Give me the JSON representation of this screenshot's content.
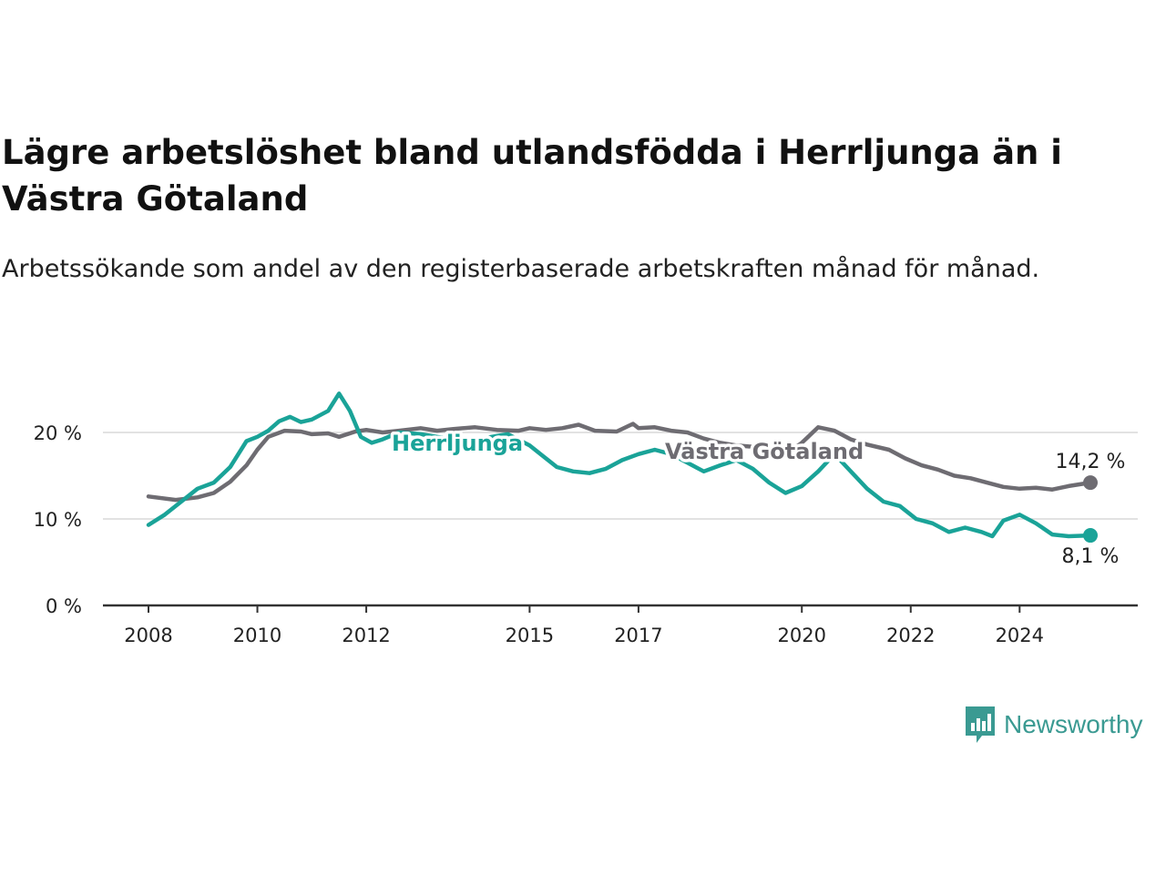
{
  "title": "Lägre arbetslöshet bland utlandsfödda i Herrljunga än i Västra Götaland",
  "subtitle": "Arbetssökande som andel av den registerbaserade arbetskraften månad för månad.",
  "brand": {
    "name": "Newsworthy",
    "icon": "newsworthy-logo-icon",
    "color": "#3a9a92"
  },
  "chart_data": {
    "type": "line",
    "title": "Lägre arbetslöshet bland utlandsfödda i Herrljunga än i Västra Götaland",
    "subtitle": "Arbetssökande som andel av den registerbaserade arbetskraften månad för månad.",
    "xlim": [
      2008.0,
      2025.75
    ],
    "ylim": [
      0,
      25
    ],
    "x_ticks": [
      {
        "value": 2008.0,
        "label": "2008"
      },
      {
        "value": 2010.0,
        "label": "2010"
      },
      {
        "value": 2012.0,
        "label": "2012"
      },
      {
        "value": 2015.0,
        "label": "2015"
      },
      {
        "value": 2017.0,
        "label": "2017"
      },
      {
        "value": 2020.0,
        "label": "2020"
      },
      {
        "value": 2022.0,
        "label": "2022"
      },
      {
        "value": 2024.0,
        "label": "2024"
      }
    ],
    "y_ticks": [
      {
        "value": 0,
        "label": "0 %"
      },
      {
        "value": 10,
        "label": "10 %"
      },
      {
        "value": 20,
        "label": "20 %"
      }
    ],
    "grid": "horizontal",
    "series": [
      {
        "name": "Västra Götaland",
        "color": "#6e6c72",
        "end_label": "14,2 %",
        "points": [
          [
            2008.0,
            12.6
          ],
          [
            2008.5,
            12.2
          ],
          [
            2008.9,
            12.5
          ],
          [
            2009.2,
            13.0
          ],
          [
            2009.5,
            14.3
          ],
          [
            2009.8,
            16.2
          ],
          [
            2010.0,
            18.0
          ],
          [
            2010.2,
            19.5
          ],
          [
            2010.5,
            20.2
          ],
          [
            2010.8,
            20.1
          ],
          [
            2011.0,
            19.8
          ],
          [
            2011.3,
            19.9
          ],
          [
            2011.5,
            19.5
          ],
          [
            2011.8,
            20.1
          ],
          [
            2012.0,
            20.3
          ],
          [
            2012.3,
            20.0
          ],
          [
            2012.6,
            20.2
          ],
          [
            2013.0,
            20.5
          ],
          [
            2013.3,
            20.2
          ],
          [
            2013.6,
            20.4
          ],
          [
            2014.0,
            20.6
          ],
          [
            2014.4,
            20.3
          ],
          [
            2014.8,
            20.2
          ],
          [
            2015.0,
            20.5
          ],
          [
            2015.3,
            20.3
          ],
          [
            2015.6,
            20.5
          ],
          [
            2015.9,
            20.9
          ],
          [
            2016.2,
            20.2
          ],
          [
            2016.6,
            20.1
          ],
          [
            2016.9,
            21.0
          ],
          [
            2017.0,
            20.5
          ],
          [
            2017.3,
            20.6
          ],
          [
            2017.6,
            20.2
          ],
          [
            2017.9,
            20.0
          ],
          [
            2018.2,
            19.3
          ],
          [
            2018.5,
            18.8
          ],
          [
            2018.8,
            18.5
          ],
          [
            2019.2,
            18.3
          ],
          [
            2019.5,
            18.0
          ],
          [
            2019.8,
            17.9
          ],
          [
            2020.0,
            18.8
          ],
          [
            2020.3,
            20.6
          ],
          [
            2020.6,
            20.2
          ],
          [
            2020.9,
            19.2
          ],
          [
            2021.2,
            18.6
          ],
          [
            2021.6,
            18.0
          ],
          [
            2021.9,
            17.0
          ],
          [
            2022.2,
            16.2
          ],
          [
            2022.5,
            15.7
          ],
          [
            2022.8,
            15.0
          ],
          [
            2023.1,
            14.7
          ],
          [
            2023.4,
            14.2
          ],
          [
            2023.7,
            13.7
          ],
          [
            2024.0,
            13.5
          ],
          [
            2024.3,
            13.6
          ],
          [
            2024.6,
            13.4
          ],
          [
            2024.9,
            13.8
          ],
          [
            2025.3,
            14.2
          ]
        ]
      },
      {
        "name": "Herrljunga",
        "color": "#1aa398",
        "end_label": "8,1 %",
        "points": [
          [
            2008.0,
            9.3
          ],
          [
            2008.3,
            10.5
          ],
          [
            2008.6,
            12.0
          ],
          [
            2008.9,
            13.5
          ],
          [
            2009.2,
            14.2
          ],
          [
            2009.5,
            16.0
          ],
          [
            2009.8,
            19.0
          ],
          [
            2010.0,
            19.5
          ],
          [
            2010.2,
            20.2
          ],
          [
            2010.4,
            21.3
          ],
          [
            2010.6,
            21.8
          ],
          [
            2010.8,
            21.2
          ],
          [
            2011.0,
            21.5
          ],
          [
            2011.3,
            22.5
          ],
          [
            2011.5,
            24.5
          ],
          [
            2011.7,
            22.5
          ],
          [
            2011.9,
            19.5
          ],
          [
            2012.1,
            18.8
          ],
          [
            2012.3,
            19.2
          ],
          [
            2012.6,
            20.0
          ],
          [
            2013.0,
            19.8
          ],
          [
            2013.3,
            19.5
          ],
          [
            2013.6,
            19.2
          ],
          [
            2014.0,
            19.0
          ],
          [
            2014.3,
            19.5
          ],
          [
            2014.6,
            19.8
          ],
          [
            2015.0,
            18.5
          ],
          [
            2015.2,
            17.5
          ],
          [
            2015.5,
            16.0
          ],
          [
            2015.8,
            15.5
          ],
          [
            2016.1,
            15.3
          ],
          [
            2016.4,
            15.8
          ],
          [
            2016.7,
            16.8
          ],
          [
            2017.0,
            17.5
          ],
          [
            2017.3,
            18.0
          ],
          [
            2017.6,
            17.5
          ],
          [
            2017.9,
            16.5
          ],
          [
            2018.2,
            15.5
          ],
          [
            2018.5,
            16.2
          ],
          [
            2018.8,
            16.8
          ],
          [
            2019.1,
            15.8
          ],
          [
            2019.4,
            14.2
          ],
          [
            2019.7,
            13.0
          ],
          [
            2020.0,
            13.8
          ],
          [
            2020.3,
            15.5
          ],
          [
            2020.6,
            17.5
          ],
          [
            2020.9,
            15.5
          ],
          [
            2021.2,
            13.5
          ],
          [
            2021.5,
            12.0
          ],
          [
            2021.8,
            11.5
          ],
          [
            2022.1,
            10.0
          ],
          [
            2022.4,
            9.5
          ],
          [
            2022.7,
            8.5
          ],
          [
            2023.0,
            9.0
          ],
          [
            2023.3,
            8.5
          ],
          [
            2023.5,
            8.0
          ],
          [
            2023.7,
            9.8
          ],
          [
            2024.0,
            10.5
          ],
          [
            2024.3,
            9.5
          ],
          [
            2024.6,
            8.2
          ],
          [
            2024.9,
            8.0
          ],
          [
            2025.3,
            8.1
          ]
        ]
      }
    ]
  }
}
